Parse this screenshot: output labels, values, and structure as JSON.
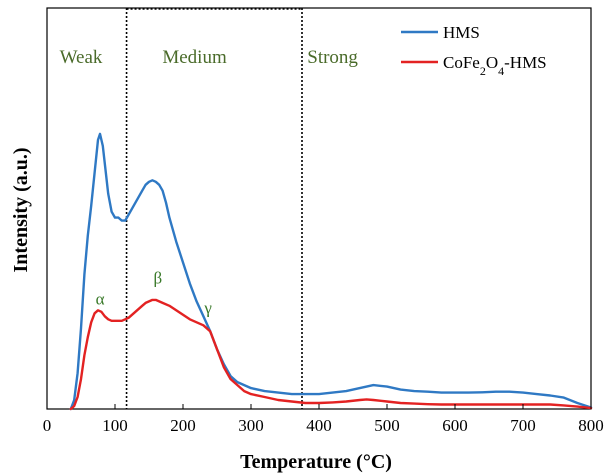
{
  "chart_data": {
    "type": "line",
    "title": "",
    "xlabel": "Temperature (°C)",
    "ylabel": "Intensity (a.u.)",
    "xlim": [
      0,
      800
    ],
    "ylim": [
      0,
      100
    ],
    "xticks": [
      "0",
      "100",
      "200",
      "300",
      "400",
      "500",
      "600",
      "700",
      "800"
    ],
    "legend_position": "top-right",
    "region_boundaries": [
      117,
      375
    ],
    "regions": [
      {
        "label": "Weak",
        "x_center": 50
      },
      {
        "label": "Medium",
        "x_center": 217
      },
      {
        "label": "Strong",
        "x_center": 420
      }
    ],
    "peak_labels": [
      {
        "label": "α",
        "x": 78,
        "y": 35
      },
      {
        "label": "β",
        "x": 163,
        "y": 42
      },
      {
        "label": "γ",
        "x": 237,
        "y": 32
      }
    ],
    "series": [
      {
        "name": "HMS",
        "color": "#2f79c4",
        "x": [
          35,
          40,
          45,
          50,
          55,
          60,
          65,
          70,
          75,
          78,
          82,
          86,
          90,
          95,
          100,
          105,
          110,
          115,
          120,
          125,
          130,
          135,
          140,
          145,
          150,
          155,
          160,
          165,
          170,
          175,
          180,
          190,
          200,
          210,
          220,
          230,
          240,
          250,
          260,
          270,
          280,
          290,
          300,
          320,
          340,
          360,
          380,
          400,
          420,
          440,
          460,
          480,
          500,
          520,
          540,
          560,
          580,
          600,
          620,
          640,
          660,
          680,
          700,
          720,
          740,
          760,
          780,
          800
        ],
        "y": [
          0,
          3,
          12,
          27,
          45,
          58,
          68,
          79,
          90,
          92,
          88,
          80,
          72,
          66,
          64,
          64,
          63,
          63,
          65,
          67,
          69,
          71,
          73,
          75,
          76,
          76.5,
          76,
          75,
          73,
          69,
          64,
          56,
          49,
          42,
          36,
          31,
          26,
          20,
          15,
          11,
          9,
          8,
          7,
          6,
          5.5,
          5,
          5,
          5,
          5.5,
          6,
          7,
          8,
          7.5,
          6.5,
          6,
          5.8,
          5.5,
          5.5,
          5.5,
          5.6,
          5.8,
          5.8,
          5.5,
          5,
          4.5,
          3.8,
          2,
          0.5
        ]
      },
      {
        "name": "CoFe₂O₄-HMS",
        "color": "#e32222",
        "x": [
          35,
          40,
          45,
          50,
          55,
          60,
          65,
          70,
          75,
          80,
          85,
          90,
          95,
          100,
          105,
          110,
          115,
          120,
          125,
          130,
          135,
          140,
          145,
          150,
          155,
          160,
          165,
          170,
          180,
          190,
          200,
          210,
          220,
          230,
          240,
          250,
          260,
          270,
          280,
          290,
          300,
          320,
          340,
          360,
          380,
          400,
          420,
          440,
          460,
          470,
          480,
          500,
          520,
          540,
          560,
          580,
          600,
          650,
          700,
          740,
          760,
          780,
          800
        ],
        "y": [
          0,
          1,
          4,
          10,
          18,
          24,
          29,
          32,
          33,
          32.5,
          31,
          30,
          29.5,
          29.5,
          29.5,
          29.5,
          30,
          30.5,
          31.5,
          32.5,
          33.5,
          34.5,
          35.5,
          36,
          36.5,
          36.5,
          36,
          35.5,
          34.5,
          33,
          31.5,
          30,
          29,
          28,
          26,
          20,
          14,
          10,
          8,
          6,
          5,
          4,
          3,
          2.5,
          2,
          2,
          2.2,
          2.5,
          3,
          3.2,
          3,
          2.5,
          2,
          1.8,
          1.6,
          1.5,
          1.5,
          1.5,
          1.5,
          1.5,
          1.2,
          0.8,
          0.3
        ]
      }
    ]
  }
}
